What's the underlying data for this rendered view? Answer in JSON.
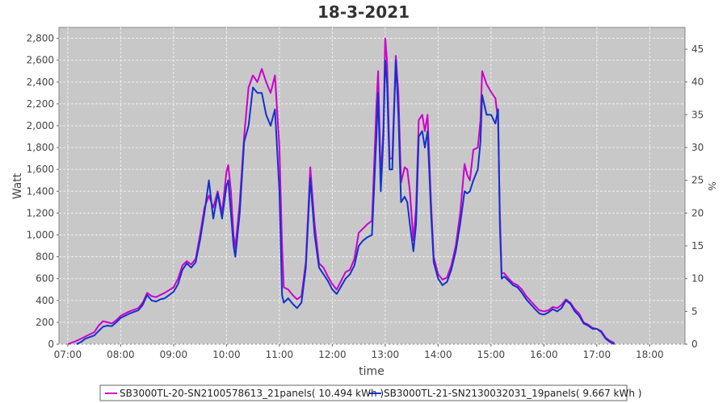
{
  "chart_data": {
    "type": "line",
    "title": "18-3-2021",
    "xlabel": "time",
    "ylabel": "Watt",
    "y2label": "%",
    "xlim": [
      "06:50",
      "18:40"
    ],
    "ylim": [
      0,
      2900
    ],
    "y2lim": [
      0,
      48.33
    ],
    "x_ticks": [
      "07:00",
      "08:00",
      "09:00",
      "10:00",
      "11:00",
      "12:00",
      "13:00",
      "14:00",
      "15:00",
      "16:00",
      "17:00",
      "18:00"
    ],
    "y_ticks": [
      "0",
      "200",
      "400",
      "600",
      "800",
      "1,000",
      "1,200",
      "1,400",
      "1,600",
      "1,800",
      "2,000",
      "2,200",
      "2,400",
      "2,600",
      "2,800"
    ],
    "y2_ticks": [
      "0",
      "5",
      "10",
      "15",
      "20",
      "25",
      "30",
      "35",
      "40",
      "45"
    ],
    "grid": true,
    "background": "#c8c8c8",
    "legend_placement": "bottom",
    "series": [
      {
        "name": "SB3000TL-20-SN2100578613_21panels( 10.494 kWh )",
        "color": "#cc00cc",
        "points": [
          [
            "07:00",
            0
          ],
          [
            "07:10",
            30
          ],
          [
            "07:20",
            70
          ],
          [
            "07:30",
            110
          ],
          [
            "07:35",
            170
          ],
          [
            "07:40",
            210
          ],
          [
            "07:45",
            200
          ],
          [
            "07:50",
            190
          ],
          [
            "07:55",
            220
          ],
          [
            "08:00",
            260
          ],
          [
            "08:10",
            300
          ],
          [
            "08:20",
            330
          ],
          [
            "08:25",
            380
          ],
          [
            "08:30",
            470
          ],
          [
            "08:35",
            440
          ],
          [
            "08:40",
            430
          ],
          [
            "08:45",
            450
          ],
          [
            "08:50",
            470
          ],
          [
            "09:00",
            520
          ],
          [
            "09:05",
            600
          ],
          [
            "09:10",
            720
          ],
          [
            "09:15",
            760
          ],
          [
            "09:20",
            730
          ],
          [
            "09:25",
            780
          ],
          [
            "09:30",
            1000
          ],
          [
            "09:35",
            1250
          ],
          [
            "09:40",
            1360
          ],
          [
            "09:45",
            1250
          ],
          [
            "09:50",
            1400
          ],
          [
            "09:55",
            1200
          ],
          [
            "10:00",
            1580
          ],
          [
            "10:02",
            1640
          ],
          [
            "10:05",
            1400
          ],
          [
            "10:08",
            1000
          ],
          [
            "10:10",
            880
          ],
          [
            "10:15",
            1300
          ],
          [
            "10:20",
            1900
          ],
          [
            "10:25",
            2350
          ],
          [
            "10:30",
            2460
          ],
          [
            "10:35",
            2400
          ],
          [
            "10:40",
            2520
          ],
          [
            "10:45",
            2400
          ],
          [
            "10:50",
            2300
          ],
          [
            "10:55",
            2460
          ],
          [
            "11:00",
            1800
          ],
          [
            "11:03",
            900
          ],
          [
            "11:05",
            520
          ],
          [
            "11:10",
            500
          ],
          [
            "11:15",
            450
          ],
          [
            "11:20",
            410
          ],
          [
            "11:25",
            440
          ],
          [
            "11:30",
            750
          ],
          [
            "11:35",
            1620
          ],
          [
            "11:40",
            1100
          ],
          [
            "11:45",
            740
          ],
          [
            "11:50",
            700
          ],
          [
            "11:55",
            620
          ],
          [
            "12:00",
            550
          ],
          [
            "12:05",
            500
          ],
          [
            "12:10",
            580
          ],
          [
            "12:15",
            660
          ],
          [
            "12:20",
            680
          ],
          [
            "12:25",
            780
          ],
          [
            "12:30",
            1020
          ],
          [
            "12:35",
            1060
          ],
          [
            "12:40",
            1100
          ],
          [
            "12:45",
            1130
          ],
          [
            "12:50",
            2180
          ],
          [
            "12:52",
            2500
          ],
          [
            "12:55",
            1500
          ],
          [
            "12:58",
            2000
          ],
          [
            "13:00",
            2800
          ],
          [
            "13:02",
            2600
          ],
          [
            "13:05",
            1700
          ],
          [
            "13:08",
            1700
          ],
          [
            "13:12",
            2640
          ],
          [
            "13:15",
            2300
          ],
          [
            "13:18",
            1480
          ],
          [
            "13:22",
            1620
          ],
          [
            "13:25",
            1600
          ],
          [
            "13:28",
            1400
          ],
          [
            "13:32",
            950
          ],
          [
            "13:35",
            1250
          ],
          [
            "13:38",
            2050
          ],
          [
            "13:42",
            2100
          ],
          [
            "13:45",
            1950
          ],
          [
            "13:48",
            2100
          ],
          [
            "13:52",
            1300
          ],
          [
            "13:55",
            800
          ],
          [
            "14:00",
            640
          ],
          [
            "14:05",
            590
          ],
          [
            "14:10",
            610
          ],
          [
            "14:15",
            720
          ],
          [
            "14:20",
            900
          ],
          [
            "14:25",
            1200
          ],
          [
            "14:30",
            1650
          ],
          [
            "14:33",
            1550
          ],
          [
            "14:36",
            1500
          ],
          [
            "14:40",
            1780
          ],
          [
            "14:45",
            1800
          ],
          [
            "14:48",
            2050
          ],
          [
            "14:50",
            2500
          ],
          [
            "14:55",
            2380
          ],
          [
            "15:00",
            2310
          ],
          [
            "15:05",
            2250
          ],
          [
            "15:08",
            2050
          ],
          [
            "15:10",
            1200
          ],
          [
            "15:12",
            650
          ],
          [
            "15:15",
            650
          ],
          [
            "15:20",
            600
          ],
          [
            "15:25",
            560
          ],
          [
            "15:30",
            540
          ],
          [
            "15:35",
            500
          ],
          [
            "15:40",
            440
          ],
          [
            "15:50",
            350
          ],
          [
            "15:55",
            310
          ],
          [
            "16:00",
            300
          ],
          [
            "16:05",
            310
          ],
          [
            "16:10",
            340
          ],
          [
            "16:15",
            330
          ],
          [
            "16:20",
            360
          ],
          [
            "16:25",
            410
          ],
          [
            "16:30",
            380
          ],
          [
            "16:35",
            320
          ],
          [
            "16:40",
            280
          ],
          [
            "16:45",
            200
          ],
          [
            "16:50",
            180
          ],
          [
            "16:55",
            150
          ],
          [
            "17:00",
            140
          ],
          [
            "17:05",
            120
          ],
          [
            "17:10",
            60
          ],
          [
            "17:15",
            30
          ],
          [
            "17:20",
            10
          ]
        ]
      },
      {
        "name": "SB3000TL-21-SN2130032031_19panels( 9.667 kWh )",
        "color": "#1133cc",
        "points": [
          [
            "07:10",
            0
          ],
          [
            "07:15",
            20
          ],
          [
            "07:20",
            50
          ],
          [
            "07:30",
            80
          ],
          [
            "07:35",
            120
          ],
          [
            "07:40",
            160
          ],
          [
            "07:45",
            170
          ],
          [
            "07:50",
            165
          ],
          [
            "07:55",
            200
          ],
          [
            "08:00",
            240
          ],
          [
            "08:10",
            280
          ],
          [
            "08:20",
            310
          ],
          [
            "08:25",
            360
          ],
          [
            "08:30",
            450
          ],
          [
            "08:35",
            400
          ],
          [
            "08:40",
            390
          ],
          [
            "08:45",
            410
          ],
          [
            "08:50",
            420
          ],
          [
            "09:00",
            480
          ],
          [
            "09:05",
            550
          ],
          [
            "09:10",
            680
          ],
          [
            "09:15",
            740
          ],
          [
            "09:20",
            700
          ],
          [
            "09:25",
            750
          ],
          [
            "09:30",
            950
          ],
          [
            "09:35",
            1200
          ],
          [
            "09:40",
            1500
          ],
          [
            "09:45",
            1150
          ],
          [
            "09:50",
            1380
          ],
          [
            "09:55",
            1150
          ],
          [
            "10:00",
            1450
          ],
          [
            "10:02",
            1500
          ],
          [
            "10:05",
            1200
          ],
          [
            "10:08",
            900
          ],
          [
            "10:10",
            800
          ],
          [
            "10:15",
            1200
          ],
          [
            "10:20",
            1850
          ],
          [
            "10:25",
            2000
          ],
          [
            "10:30",
            2350
          ],
          [
            "10:35",
            2300
          ],
          [
            "10:40",
            2300
          ],
          [
            "10:45",
            2100
          ],
          [
            "10:50",
            2000
          ],
          [
            "10:55",
            2150
          ],
          [
            "11:00",
            1400
          ],
          [
            "11:03",
            450
          ],
          [
            "11:05",
            380
          ],
          [
            "11:10",
            420
          ],
          [
            "11:15",
            370
          ],
          [
            "11:20",
            330
          ],
          [
            "11:25",
            380
          ],
          [
            "11:30",
            700
          ],
          [
            "11:35",
            1520
          ],
          [
            "11:40",
            1000
          ],
          [
            "11:45",
            700
          ],
          [
            "11:50",
            640
          ],
          [
            "11:55",
            580
          ],
          [
            "12:00",
            500
          ],
          [
            "12:05",
            460
          ],
          [
            "12:10",
            530
          ],
          [
            "12:15",
            600
          ],
          [
            "12:20",
            640
          ],
          [
            "12:25",
            720
          ],
          [
            "12:30",
            900
          ],
          [
            "12:35",
            950
          ],
          [
            "12:40",
            980
          ],
          [
            "12:45",
            1000
          ],
          [
            "12:50",
            1900
          ],
          [
            "12:52",
            2300
          ],
          [
            "12:55",
            1400
          ],
          [
            "12:58",
            1900
          ],
          [
            "13:00",
            2600
          ],
          [
            "13:02",
            2400
          ],
          [
            "13:05",
            1600
          ],
          [
            "13:08",
            1600
          ],
          [
            "13:12",
            2600
          ],
          [
            "13:15",
            2100
          ],
          [
            "13:18",
            1300
          ],
          [
            "13:22",
            1350
          ],
          [
            "13:25",
            1300
          ],
          [
            "13:28",
            1100
          ],
          [
            "13:32",
            850
          ],
          [
            "13:35",
            1100
          ],
          [
            "13:38",
            1900
          ],
          [
            "13:42",
            1950
          ],
          [
            "13:45",
            1800
          ],
          [
            "13:48",
            1950
          ],
          [
            "13:52",
            1200
          ],
          [
            "13:55",
            750
          ],
          [
            "14:00",
            600
          ],
          [
            "14:05",
            540
          ],
          [
            "14:10",
            570
          ],
          [
            "14:15",
            680
          ],
          [
            "14:20",
            850
          ],
          [
            "14:25",
            1100
          ],
          [
            "14:30",
            1400
          ],
          [
            "14:33",
            1380
          ],
          [
            "14:36",
            1400
          ],
          [
            "14:40",
            1500
          ],
          [
            "14:45",
            1600
          ],
          [
            "14:48",
            1850
          ],
          [
            "14:50",
            2280
          ],
          [
            "14:55",
            2100
          ],
          [
            "15:00",
            2100
          ],
          [
            "15:05",
            2020
          ],
          [
            "15:08",
            2150
          ],
          [
            "15:10",
            1100
          ],
          [
            "15:12",
            600
          ],
          [
            "15:15",
            620
          ],
          [
            "15:20",
            580
          ],
          [
            "15:25",
            540
          ],
          [
            "15:30",
            520
          ],
          [
            "15:35",
            470
          ],
          [
            "15:40",
            410
          ],
          [
            "15:50",
            320
          ],
          [
            "15:55",
            280
          ],
          [
            "16:00",
            270
          ],
          [
            "16:05",
            290
          ],
          [
            "16:10",
            320
          ],
          [
            "16:15",
            300
          ],
          [
            "16:20",
            330
          ],
          [
            "16:25",
            400
          ],
          [
            "16:30",
            370
          ],
          [
            "16:35",
            300
          ],
          [
            "16:40",
            260
          ],
          [
            "16:45",
            190
          ],
          [
            "16:50",
            170
          ],
          [
            "16:55",
            140
          ],
          [
            "17:00",
            140
          ],
          [
            "17:05",
            110
          ],
          [
            "17:10",
            50
          ],
          [
            "17:15",
            20
          ],
          [
            "17:20",
            0
          ]
        ]
      }
    ]
  }
}
